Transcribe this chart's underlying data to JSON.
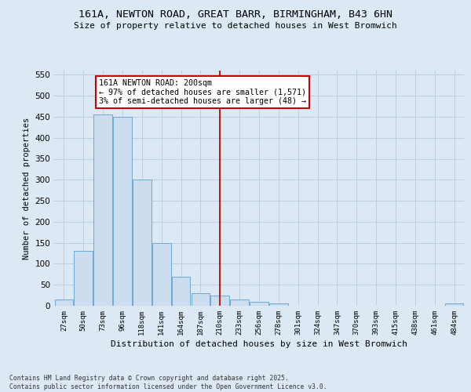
{
  "title_line1": "161A, NEWTON ROAD, GREAT BARR, BIRMINGHAM, B43 6HN",
  "title_line2": "Size of property relative to detached houses in West Bromwich",
  "xlabel": "Distribution of detached houses by size in West Bromwich",
  "ylabel": "Number of detached properties",
  "footer_line1": "Contains HM Land Registry data © Crown copyright and database right 2025.",
  "footer_line2": "Contains public sector information licensed under the Open Government Licence v3.0.",
  "bar_color": "#ccddf0",
  "bar_edge_color": "#6aaad4",
  "grid_color": "#b8cfe0",
  "background_color": "#dce8f4",
  "vline_color": "#cc0000",
  "annotation_text": "161A NEWTON ROAD: 200sqm\n← 97% of detached houses are smaller (1,571)\n3% of semi-detached houses are larger (48) →",
  "annotation_box_color": "#ffffff",
  "annotation_border_color": "#cc0000",
  "categories": [
    "27sqm",
    "50sqm",
    "73sqm",
    "96sqm",
    "118sqm",
    "141sqm",
    "164sqm",
    "187sqm",
    "210sqm",
    "233sqm",
    "256sqm",
    "278sqm",
    "301sqm",
    "324sqm",
    "347sqm",
    "370sqm",
    "393sqm",
    "415sqm",
    "438sqm",
    "461sqm",
    "484sqm"
  ],
  "values": [
    15,
    130,
    455,
    450,
    300,
    150,
    70,
    30,
    25,
    15,
    10,
    5,
    0,
    0,
    0,
    0,
    0,
    0,
    0,
    0,
    5
  ],
  "ylim": [
    0,
    560
  ],
  "yticks": [
    0,
    50,
    100,
    150,
    200,
    250,
    300,
    350,
    400,
    450,
    500,
    550
  ]
}
